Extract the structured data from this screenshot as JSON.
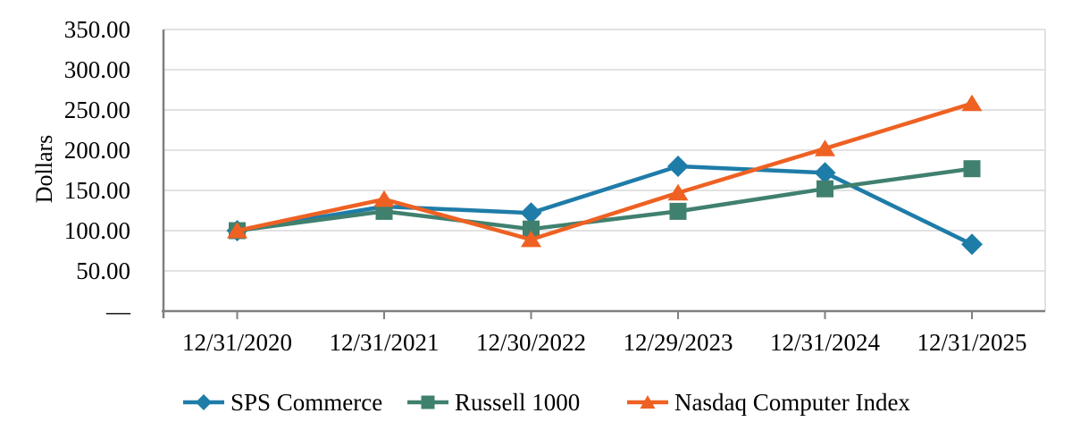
{
  "chart_data": {
    "type": "line",
    "title": "",
    "ylabel": "Dollars",
    "categories": [
      "12/31/2020",
      "12/31/2021",
      "12/30/2022",
      "12/29/2023",
      "12/31/2024",
      "12/31/2025"
    ],
    "y_axis": {
      "min": 0,
      "max": 350,
      "tick_interval": 50,
      "tick_labels": [
        "350.00",
        "300.00",
        "250.00",
        "200.00",
        "150.00",
        "100.00",
        "50.00",
        "—"
      ]
    },
    "grid": "horizontal",
    "legend_position": "bottom",
    "series": [
      {
        "name": "SPS Commerce",
        "marker": "diamond",
        "color": "#1E7CA8",
        "values": [
          100,
          130,
          122,
          180,
          172,
          83
        ]
      },
      {
        "name": "Russell 1000",
        "marker": "square",
        "color": "#40806F",
        "values": [
          100,
          124,
          102,
          124,
          152,
          177
        ]
      },
      {
        "name": "Nasdaq Computer Index",
        "marker": "triangle",
        "color": "#EE6123",
        "values": [
          100,
          139,
          89,
          147,
          202,
          258
        ]
      }
    ]
  },
  "colors": {
    "axis": "#808080",
    "gridline": "#D9D9D9",
    "text": "#000000",
    "background": "#FFFFFF"
  }
}
